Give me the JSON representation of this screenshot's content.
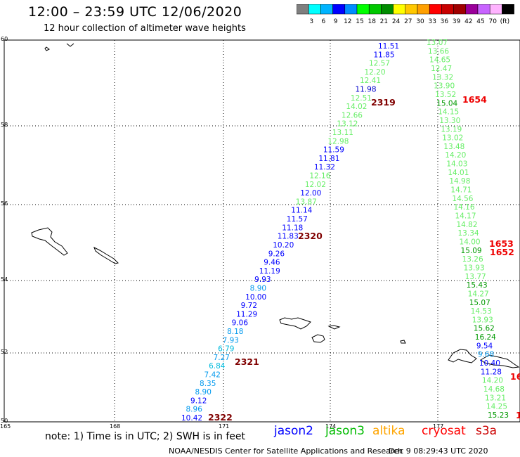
{
  "header": {
    "title": "12:00 – 23:59 UTC 12/06/2020",
    "subtitle": "12 hour collection of altimeter wave heights"
  },
  "legend": {
    "colors": [
      "#7f7f7f",
      "#00ffff",
      "#00b4ff",
      "#0000ff",
      "#008cff",
      "#00ff00",
      "#00c800",
      "#008c00",
      "#ffff00",
      "#ffc800",
      "#ffa000",
      "#ff0000",
      "#c80000",
      "#a00000",
      "#9a009a",
      "#c864ff",
      "#ffb4ff",
      "#000000"
    ],
    "labels": [
      "3",
      "6",
      "9",
      "12",
      "15",
      "18",
      "21",
      "24",
      "27",
      "30",
      "33",
      "36",
      "39",
      "42",
      "45",
      "70",
      "(ft)"
    ]
  },
  "map": {
    "lat_labels": [
      "60",
      "58",
      "56",
      "54",
      "52",
      "50"
    ],
    "lon_labels": [
      "165",
      "168",
      "171",
      "174",
      "177"
    ],
    "track_2319": [
      {
        "v": "11.51",
        "c": "#0000ff"
      },
      {
        "v": "11.85",
        "c": "#0000ff"
      },
      {
        "v": "12.57",
        "c": "#66ee66"
      },
      {
        "v": "12.20",
        "c": "#66ee66"
      },
      {
        "v": "12.41",
        "c": "#66ee66"
      },
      {
        "v": "11.98",
        "c": "#0000cc"
      },
      {
        "v": "12.51",
        "c": "#66ee66"
      },
      {
        "v": "14.02",
        "c": "#66ee66"
      },
      {
        "v": "12.66",
        "c": "#66ee66"
      },
      {
        "v": "13.12",
        "c": "#66ee66"
      },
      {
        "v": "13.11",
        "c": "#66ee66"
      },
      {
        "v": "12.98",
        "c": "#66ee66"
      },
      {
        "v": "11.59",
        "c": "#0000ff"
      },
      {
        "v": "11.81",
        "c": "#0000ff"
      },
      {
        "v": "11.32",
        "c": "#0000ff"
      },
      {
        "v": "12.16",
        "c": "#66ee66"
      },
      {
        "v": "12.02",
        "c": "#66ee66"
      },
      {
        "v": "12.00",
        "c": "#0000ff"
      },
      {
        "v": "13.87",
        "c": "#66ee66"
      },
      {
        "v": "11.14",
        "c": "#0000ff"
      },
      {
        "v": "11.57",
        "c": "#0000ff"
      },
      {
        "v": "11.18",
        "c": "#0000ff"
      },
      {
        "v": "11.83",
        "c": "#0000ff"
      },
      {
        "v": "10.20",
        "c": "#0000ff"
      },
      {
        "v": "9.26",
        "c": "#0000ff"
      },
      {
        "v": "9.46",
        "c": "#0000ff"
      },
      {
        "v": "11.19",
        "c": "#0000ff"
      },
      {
        "v": "9.93",
        "c": "#0000ff"
      },
      {
        "v": "8.90",
        "c": "#0099ee"
      },
      {
        "v": "10.00",
        "c": "#0000ff"
      },
      {
        "v": "9.72",
        "c": "#0000ff"
      },
      {
        "v": "11.29",
        "c": "#0000ff"
      },
      {
        "v": "9.06",
        "c": "#0000ff"
      },
      {
        "v": "8.18",
        "c": "#0099ee"
      },
      {
        "v": "7.93",
        "c": "#0099ee"
      },
      {
        "v": "6.79",
        "c": "#00bbdd"
      },
      {
        "v": "7.27",
        "c": "#0099ee"
      },
      {
        "v": "6.84",
        "c": "#00bbdd"
      },
      {
        "v": "7.42",
        "c": "#0099ee"
      },
      {
        "v": "8.35",
        "c": "#0099ee"
      },
      {
        "v": "8.90",
        "c": "#0099ee"
      },
      {
        "v": "9.12",
        "c": "#0000ff"
      },
      {
        "v": "8.96",
        "c": "#0099ee"
      },
      {
        "v": "10.42",
        "c": "#0000ff"
      }
    ],
    "track_1654": [
      {
        "v": "13.07",
        "c": "#66ee66"
      },
      {
        "v": "13.66",
        "c": "#66ee66"
      },
      {
        "v": "14.65",
        "c": "#66ee66"
      },
      {
        "v": "12.47",
        "c": "#66ee66"
      },
      {
        "v": "13.32",
        "c": "#66ee66"
      },
      {
        "v": "13.90",
        "c": "#66ee66"
      },
      {
        "v": "13.52",
        "c": "#66ee66"
      },
      {
        "v": "15.04",
        "c": "#009900"
      },
      {
        "v": "14.15",
        "c": "#66ee66"
      },
      {
        "v": "13.30",
        "c": "#66ee66"
      },
      {
        "v": "13.19",
        "c": "#66ee66"
      },
      {
        "v": "13.02",
        "c": "#66ee66"
      },
      {
        "v": "13.48",
        "c": "#66ee66"
      },
      {
        "v": "14.20",
        "c": "#66ee66"
      },
      {
        "v": "14.03",
        "c": "#66ee66"
      },
      {
        "v": "14.01",
        "c": "#66ee66"
      },
      {
        "v": "14.98",
        "c": "#66ee66"
      },
      {
        "v": "14.71",
        "c": "#66ee66"
      },
      {
        "v": "14.56",
        "c": "#66ee66"
      },
      {
        "v": "14.16",
        "c": "#66ee66"
      },
      {
        "v": "14.17",
        "c": "#66ee66"
      },
      {
        "v": "14.82",
        "c": "#66ee66"
      },
      {
        "v": "13.34",
        "c": "#66ee66"
      },
      {
        "v": "14.00",
        "c": "#66ee66"
      },
      {
        "v": "15.09",
        "c": "#009900"
      },
      {
        "v": "13.26",
        "c": "#66ee66"
      },
      {
        "v": "13.93",
        "c": "#66ee66"
      },
      {
        "v": "13.77",
        "c": "#66ee66"
      },
      {
        "v": "15.43",
        "c": "#009900"
      },
      {
        "v": "14.27",
        "c": "#66ee66"
      },
      {
        "v": "15.07",
        "c": "#009900"
      },
      {
        "v": "14.53",
        "c": "#66ee66"
      },
      {
        "v": "13.93",
        "c": "#66ee66"
      },
      {
        "v": "15.62",
        "c": "#009900"
      },
      {
        "v": "16.24",
        "c": "#009900"
      },
      {
        "v": "9.54",
        "c": "#0000ff"
      },
      {
        "v": "9.68",
        "c": "#0099ee"
      },
      {
        "v": "10.40",
        "c": "#0000ff"
      },
      {
        "v": "11.28",
        "c": "#0000ff"
      },
      {
        "v": "14.20",
        "c": "#66ee66"
      },
      {
        "v": "14.68",
        "c": "#66ee66"
      },
      {
        "v": "13.21",
        "c": "#66ee66"
      },
      {
        "v": "14.25",
        "c": "#66ee66"
      },
      {
        "v": "15.23",
        "c": "#009900"
      }
    ],
    "time_labels": [
      {
        "t": "2319",
        "c": "#800000"
      },
      {
        "t": "2320",
        "c": "#800000"
      },
      {
        "t": "2321",
        "c": "#800000"
      },
      {
        "t": "2322",
        "c": "#800000"
      },
      {
        "t": "1654",
        "c": "#ee0000"
      },
      {
        "t": "1653",
        "c": "#ee0000"
      },
      {
        "t": "1652",
        "c": "#ee0000"
      },
      {
        "t": "16",
        "c": "#ee0000"
      },
      {
        "t": "1",
        "c": "#ee0000"
      }
    ]
  },
  "footer": {
    "note": "note: 1) Time is in UTC; 2) SWH is in feet",
    "satellites": [
      {
        "name": "jason2",
        "color": "#0000ff"
      },
      {
        "name": "jason3",
        "color": "#00bb00"
      },
      {
        "name": "altika",
        "color": "#ffa500"
      },
      {
        "name": "cryosat",
        "color": "#ff0000"
      },
      {
        "name": "s3a",
        "color": "#cc0000"
      }
    ],
    "credit": "NOAA/NESDIS Center for Satellite Applications and Research",
    "timestamp": "Dec  9 08:29:43 UTC 2020"
  }
}
